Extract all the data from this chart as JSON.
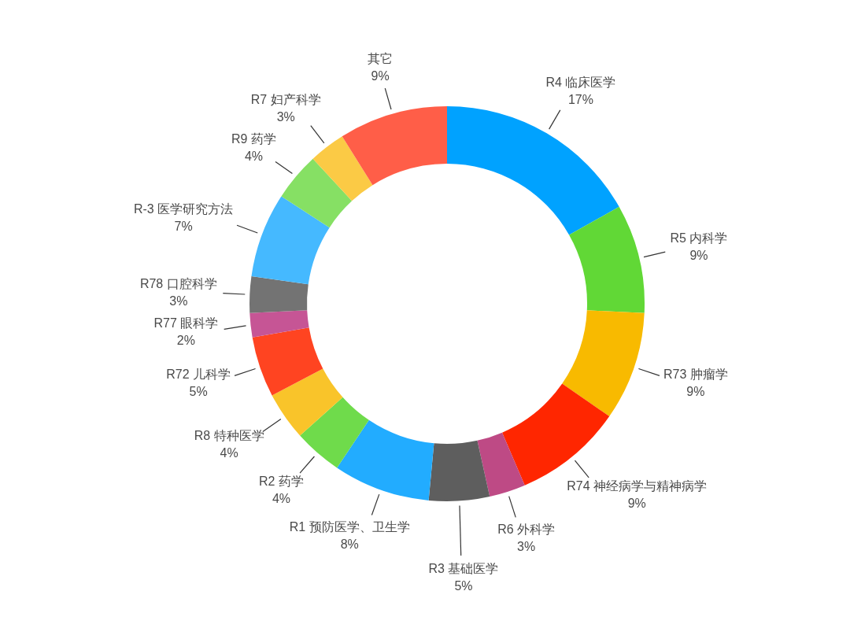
{
  "chart_data": {
    "type": "donut",
    "categories": [
      "R4 临床医学",
      "R5 内科学",
      "R73 肿瘤学",
      "R74 神经病学与精神病学",
      "R6 外科学",
      "R3 基础医学",
      "R1 预防医学、卫生学",
      "R2 药学",
      "R8 特种医学",
      "R72 儿科学",
      "R77 眼科学",
      "R78 口腔科学",
      "R-3 医学研究方法",
      "R9 药学",
      "R7 妇产科学",
      "其它"
    ],
    "values": [
      17,
      9,
      9,
      9,
      3,
      5,
      8,
      4,
      4,
      5,
      2,
      3,
      7,
      4,
      3,
      9
    ],
    "value_labels": [
      "17%",
      "9%",
      "9%",
      "9%",
      "3%",
      "5%",
      "8%",
      "4%",
      "4%",
      "5%",
      "2%",
      "3%",
      "7%",
      "4%",
      "3%",
      "9%"
    ],
    "colors": [
      "#00a2ff",
      "#61d836",
      "#f8ba00",
      "#ff2600",
      "#be4a85",
      "#5e5e5e",
      "#22acff",
      "#6fdb4b",
      "#f9c42a",
      "#ff4421",
      "#c65595",
      "#737373",
      "#45b9ff",
      "#86e064",
      "#fbca45",
      "#ff5e48"
    ]
  }
}
